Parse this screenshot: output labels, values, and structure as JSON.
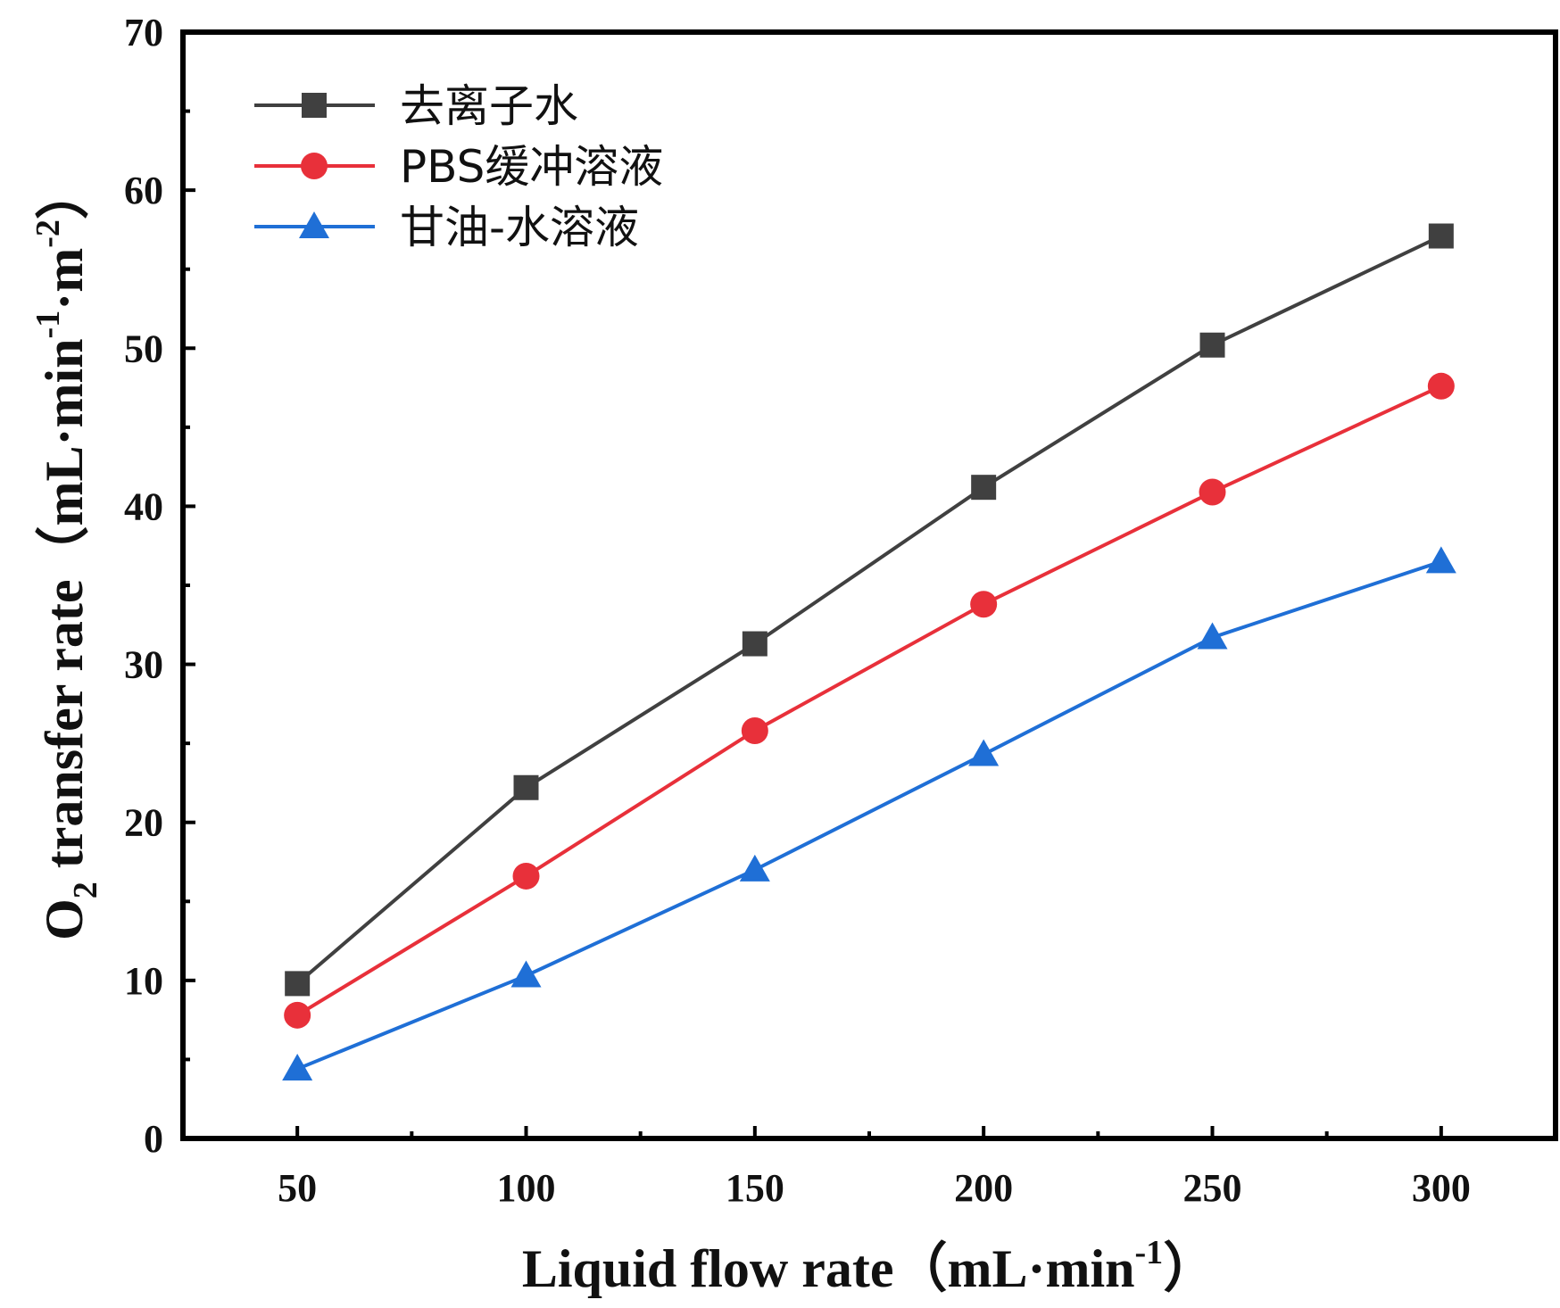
{
  "chart_data": {
    "type": "line",
    "x": [
      50,
      100,
      150,
      200,
      250,
      300
    ],
    "series": [
      {
        "name": "去离子水",
        "color": "#404040",
        "marker": "square",
        "values": [
          9.8,
          22.2,
          31.3,
          41.2,
          50.2,
          57.1
        ]
      },
      {
        "name": "PBS缓冲溶液",
        "color": "#e8303a",
        "marker": "circle",
        "values": [
          7.8,
          16.6,
          25.8,
          33.8,
          40.9,
          47.6
        ]
      },
      {
        "name": "甘油-水溶液",
        "color": "#1f6fd6",
        "marker": "triangle",
        "values": [
          4.4,
          10.3,
          17.0,
          24.3,
          31.7,
          36.5
        ]
      }
    ],
    "xlim": [
      25,
      325
    ],
    "ylim": [
      0,
      70
    ],
    "xticks": [
      "50",
      "100",
      "150",
      "200",
      "250",
      "300"
    ],
    "yticks": [
      "0",
      "10",
      "20",
      "30",
      "40",
      "50",
      "60",
      "70"
    ],
    "xlabel": {
      "main": "Liquid flow rate（mL·min",
      "sup": "-1",
      "end": "）"
    },
    "ylabel": {
      "o": "O",
      "sub": "2",
      "main": " transfer rate（mL·min",
      "sup1": "-1",
      "mid": "·m",
      "sup2": "-2",
      "end": "）"
    },
    "grid": false,
    "legend_position": "top-left"
  }
}
